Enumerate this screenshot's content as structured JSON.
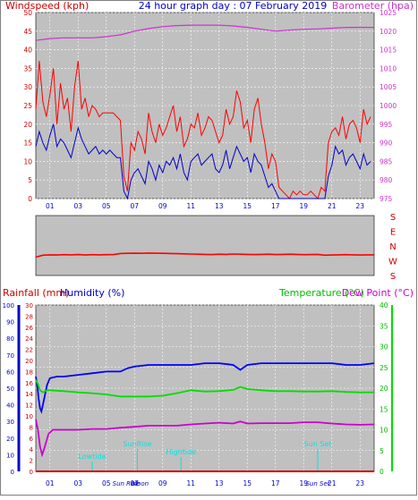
{
  "header": {
    "left_label": "Windspeed (kph)",
    "title": "24 hour graph day : 07 February 2019",
    "right_label": "Barometer (hpa)"
  },
  "colors": {
    "plot_bg": "#c0c0c0",
    "wind_avg": "#0000cc",
    "wind_gust": "#ff0000",
    "barometer": "#cc33cc",
    "humidity": "#0000ff",
    "temperature": "#00dd00",
    "dewpoint": "#cc00cc",
    "rainfall": "#cc0000",
    "events": "#00e5e5"
  },
  "time_ticks": [
    "01",
    "03",
    "05",
    "07",
    "09",
    "11",
    "13",
    "15",
    "17",
    "19",
    "21",
    "23"
  ],
  "direction": {
    "labels": [
      "S",
      "E",
      "N",
      "W",
      "S"
    ]
  },
  "lower": {
    "rain_label": "Rainfall (mm)",
    "humidity_label": "Humidity (%)",
    "temp_label": "Temperature (°C)",
    "dew_label": "Dew Point (°C)",
    "time_ticks": [
      "01",
      "03",
      "05",
      "07",
      "09",
      "11",
      "13",
      "15",
      "17",
      "19",
      "21",
      "23"
    ],
    "events": [
      {
        "label": "Lowtide",
        "hour": 4.0
      },
      {
        "label": "SunRise",
        "hour": 7.2
      },
      {
        "label": "Hightide",
        "hour": 10.3
      },
      {
        "label": "Sun Set",
        "hour": 20.0
      }
    ],
    "bottom_marks": [
      {
        "label": "Sun Rise",
        "hour": 6.4
      },
      {
        "label": "Moon",
        "hour": 7.4
      },
      {
        "label": "Sun Set",
        "hour": 20.0
      }
    ]
  },
  "chart_data": [
    {
      "type": "line",
      "title": "24 hour graph day : 07 February 2019",
      "x_range": [
        0,
        24
      ],
      "ylabel": "Windspeed (kph)",
      "ylim": [
        0,
        50
      ],
      "y_ticks": [
        0,
        5,
        10,
        15,
        20,
        25,
        30,
        35,
        40,
        45,
        50
      ],
      "y2label": "Barometer (hpa)",
      "y2lim": [
        975,
        1025
      ],
      "y2_ticks": [
        975,
        980,
        985,
        990,
        995,
        1000,
        1005,
        1010,
        1015,
        1020,
        1025
      ],
      "grid": true,
      "series": [
        {
          "name": "Wind Gust",
          "axis": "left",
          "color": "#ff0000",
          "x": [
            0.0,
            0.25,
            0.5,
            0.75,
            1.0,
            1.25,
            1.5,
            1.75,
            2.0,
            2.25,
            2.5,
            2.75,
            3.0,
            3.25,
            3.5,
            3.75,
            4.0,
            4.25,
            4.5,
            4.75,
            5.0,
            5.25,
            5.5,
            5.75,
            6.0,
            6.25,
            6.5,
            6.75,
            7.0,
            7.25,
            7.5,
            7.75,
            8.0,
            8.25,
            8.5,
            8.75,
            9.0,
            9.25,
            9.5,
            9.75,
            10.0,
            10.25,
            10.5,
            10.75,
            11.0,
            11.25,
            11.5,
            11.75,
            12.0,
            12.25,
            12.5,
            12.75,
            13.0,
            13.25,
            13.5,
            13.75,
            14.0,
            14.25,
            14.5,
            14.75,
            15.0,
            15.25,
            15.5,
            15.75,
            16.0,
            16.25,
            16.5,
            16.75,
            17.0,
            17.25,
            17.5,
            17.75,
            18.0,
            18.25,
            18.5,
            18.75,
            19.0,
            19.25,
            19.5,
            19.75,
            20.0,
            20.25,
            20.5,
            20.75,
            21.0,
            21.25,
            21.5,
            21.75,
            22.0,
            22.25,
            22.5,
            22.75,
            23.0,
            23.25,
            23.5,
            23.75
          ],
          "values": [
            24,
            37,
            26,
            22,
            28,
            35,
            20,
            31,
            24,
            27,
            18,
            30,
            37,
            24,
            27,
            22,
            25,
            24,
            22,
            23,
            23,
            23,
            23,
            22,
            21,
            6,
            2,
            15,
            13,
            18,
            16,
            12,
            23,
            18,
            15,
            20,
            17,
            19,
            22,
            25,
            18,
            22,
            14,
            16,
            20,
            19,
            23,
            17,
            19,
            22,
            21,
            18,
            15,
            17,
            24,
            20,
            22,
            29,
            26,
            19,
            21,
            15,
            24,
            27,
            20,
            15,
            8,
            12,
            10,
            3,
            2,
            1,
            0,
            2,
            1,
            2,
            1,
            1,
            2,
            1,
            0,
            3,
            2,
            15,
            18,
            19,
            17,
            22,
            16,
            20,
            21,
            19,
            15,
            24,
            20,
            22
          ]
        },
        {
          "name": "Wind Average",
          "axis": "left",
          "color": "#0000cc",
          "x": [
            0.0,
            0.25,
            0.5,
            0.75,
            1.0,
            1.25,
            1.5,
            1.75,
            2.0,
            2.25,
            2.5,
            2.75,
            3.0,
            3.25,
            3.5,
            3.75,
            4.0,
            4.25,
            4.5,
            4.75,
            5.0,
            5.25,
            5.5,
            5.75,
            6.0,
            6.25,
            6.5,
            6.75,
            7.0,
            7.25,
            7.5,
            7.75,
            8.0,
            8.25,
            8.5,
            8.75,
            9.0,
            9.25,
            9.5,
            9.75,
            10.0,
            10.25,
            10.5,
            10.75,
            11.0,
            11.25,
            11.5,
            11.75,
            12.0,
            12.25,
            12.5,
            12.75,
            13.0,
            13.25,
            13.5,
            13.75,
            14.0,
            14.25,
            14.5,
            14.75,
            15.0,
            15.25,
            15.5,
            15.75,
            16.0,
            16.25,
            16.5,
            16.75,
            17.0,
            17.25,
            17.5,
            17.75,
            18.0,
            18.25,
            18.5,
            18.75,
            19.0,
            19.25,
            19.5,
            19.75,
            20.0,
            20.25,
            20.5,
            20.75,
            21.0,
            21.25,
            21.5,
            21.75,
            22.0,
            22.25,
            22.5,
            22.75,
            23.0,
            23.25,
            23.5,
            23.75
          ],
          "values": [
            14,
            18,
            15,
            13,
            17,
            20,
            14,
            16,
            15,
            13,
            11,
            15,
            19,
            16,
            14,
            12,
            13,
            14,
            12,
            13,
            12,
            13,
            12,
            11,
            11,
            2,
            0,
            5,
            7,
            8,
            6,
            4,
            10,
            8,
            5,
            9,
            7,
            10,
            9,
            11,
            8,
            12,
            7,
            5,
            10,
            11,
            12,
            9,
            10,
            11,
            12,
            8,
            7,
            9,
            13,
            8,
            11,
            14,
            12,
            10,
            11,
            7,
            12,
            10,
            9,
            6,
            3,
            4,
            2,
            0,
            0,
            0,
            0,
            0,
            0,
            0,
            0,
            0,
            0,
            0,
            0,
            0,
            0,
            6,
            9,
            14,
            12,
            13,
            9,
            11,
            12,
            10,
            8,
            12,
            9,
            10
          ]
        },
        {
          "name": "Barometer",
          "axis": "right",
          "color": "#cc33cc",
          "x": [
            0,
            1,
            2,
            3,
            4,
            5,
            6,
            7,
            8,
            9,
            10,
            11,
            12,
            13,
            14,
            15,
            16,
            17,
            18,
            19,
            20,
            21,
            22,
            23,
            24
          ],
          "values": [
            1017.5,
            1018.0,
            1018.2,
            1018.2,
            1018.2,
            1018.5,
            1019.0,
            1020.0,
            1020.7,
            1021.2,
            1021.5,
            1021.6,
            1021.6,
            1021.6,
            1021.4,
            1021.0,
            1020.5,
            1020.0,
            1020.3,
            1020.5,
            1020.6,
            1020.8,
            1021.0,
            1021.0,
            1021.0
          ]
        }
      ]
    },
    {
      "type": "line",
      "x_range": [
        0,
        24
      ],
      "ylabel": "",
      "grid": false,
      "y_labels": [
        "S",
        "E",
        "N",
        "W",
        "S"
      ],
      "series": [
        {
          "name": "Wind Direction",
          "color": "#ff0000",
          "x": [
            0.0,
            0.5,
            1.0,
            1.5,
            2.0,
            2.5,
            3.0,
            3.5,
            4.0,
            4.5,
            5.0,
            5.5,
            6.0,
            6.5,
            7.0,
            7.5,
            8.0,
            8.5,
            9.0,
            9.5,
            10.0,
            10.5,
            11.0,
            11.5,
            12.0,
            12.5,
            13.0,
            13.5,
            14.0,
            14.5,
            15.0,
            15.5,
            16.0,
            16.5,
            17.0,
            17.5,
            18.0,
            18.5,
            19.0,
            19.5,
            20.0,
            20.5,
            21.0,
            21.5,
            22.0,
            22.5,
            23.0,
            23.5,
            24.0
          ],
          "values": [
            110,
            122,
            124,
            123,
            125,
            124,
            126,
            123,
            125,
            124,
            125,
            126,
            132,
            133,
            134,
            133,
            135,
            134,
            133,
            132,
            131,
            130,
            129,
            128,
            127,
            126,
            128,
            127,
            129,
            128,
            127,
            126,
            127,
            128,
            126,
            127,
            128,
            127,
            125,
            126,
            127,
            122,
            123,
            124,
            125,
            124,
            123,
            124,
            124
          ]
        }
      ]
    },
    {
      "type": "line",
      "x_range": [
        0,
        24
      ],
      "y_axes": [
        {
          "label": "Rainfall (mm)",
          "lim": [
            0,
            30
          ],
          "ticks": [
            0,
            2,
            4,
            6,
            8,
            10,
            12,
            14,
            16,
            18,
            20,
            22,
            24,
            26,
            28,
            30
          ]
        },
        {
          "label": "Humidity (%)",
          "lim": [
            0,
            100
          ],
          "ticks": [
            0,
            10,
            20,
            30,
            40,
            50,
            60,
            70,
            80,
            90,
            100
          ]
        },
        {
          "label": "Temperature (°C)",
          "lim": [
            0,
            40
          ],
          "ticks": [
            0,
            5,
            10,
            15,
            20,
            25,
            30,
            35,
            40
          ]
        },
        {
          "label": "Dew Point (°C)",
          "lim": [
            0,
            40
          ],
          "ticks": [
            0,
            5,
            10,
            15,
            20,
            25,
            30,
            35,
            40
          ]
        }
      ],
      "grid": true,
      "series": [
        {
          "name": "Humidity",
          "axis": "Humidity (%)",
          "color": "#0000ff",
          "x": [
            0.0,
            0.1,
            0.2,
            0.3,
            0.4,
            0.55,
            0.8,
            1.0,
            1.5,
            2.0,
            3.0,
            4.0,
            5.0,
            6.0,
            6.5,
            7.0,
            8.0,
            9.0,
            10.0,
            11.0,
            12.0,
            13.0,
            14.0,
            14.5,
            15.0,
            16.0,
            17.0,
            18.0,
            19.0,
            20.0,
            21.0,
            22.0,
            23.0,
            24.0
          ],
          "values": [
            57,
            52,
            44,
            38,
            36,
            42,
            52,
            56,
            57,
            57,
            58,
            59,
            60,
            60,
            62,
            63,
            64,
            64,
            64,
            64,
            65,
            65,
            64,
            61,
            64,
            65,
            65,
            65,
            65,
            65,
            65,
            64,
            64,
            65
          ]
        },
        {
          "name": "Temperature",
          "axis": "Temperature (°C)",
          "color": "#00dd00",
          "x": [
            0.0,
            0.15,
            0.3,
            0.5,
            0.8,
            1.0,
            2.0,
            3.0,
            4.0,
            5.0,
            6.0,
            7.0,
            8.0,
            9.0,
            10.0,
            11.0,
            12.0,
            13.0,
            14.0,
            14.5,
            15.0,
            16.0,
            17.0,
            18.0,
            19.0,
            20.0,
            21.0,
            22.0,
            23.0,
            24.0
          ],
          "values": [
            22.0,
            21.0,
            19.5,
            19.0,
            19.5,
            19.5,
            19.3,
            19.0,
            18.8,
            18.5,
            18.0,
            18.0,
            18.0,
            18.2,
            18.8,
            19.5,
            19.2,
            19.3,
            19.6,
            20.3,
            19.8,
            19.5,
            19.3,
            19.3,
            19.2,
            19.2,
            19.3,
            19.1,
            19.0,
            19.0
          ]
        },
        {
          "name": "Dew Point",
          "axis": "Dew Point (°C)",
          "color": "#cc00cc",
          "x": [
            0.0,
            0.15,
            0.3,
            0.45,
            0.6,
            0.9,
            1.2,
            2.0,
            3.0,
            4.0,
            5.0,
            6.0,
            7.0,
            8.0,
            9.0,
            10.0,
            11.0,
            12.0,
            13.0,
            14.0,
            14.5,
            15.0,
            16.0,
            17.0,
            18.0,
            19.0,
            20.0,
            21.0,
            22.0,
            23.0,
            24.0
          ],
          "values": [
            12.5,
            10.0,
            6.0,
            4.0,
            5.5,
            9.0,
            10.0,
            10.0,
            10.0,
            10.2,
            10.2,
            10.5,
            10.7,
            11.0,
            11.0,
            11.0,
            11.3,
            11.5,
            11.7,
            11.5,
            12.0,
            11.5,
            11.6,
            11.6,
            11.6,
            11.8,
            11.8,
            11.5,
            11.3,
            11.2,
            11.3
          ]
        },
        {
          "name": "Rainfall",
          "axis": "Rainfall (mm)",
          "color": "#cc0000",
          "x": [
            0,
            24
          ],
          "values": [
            0,
            0
          ]
        }
      ]
    }
  ]
}
